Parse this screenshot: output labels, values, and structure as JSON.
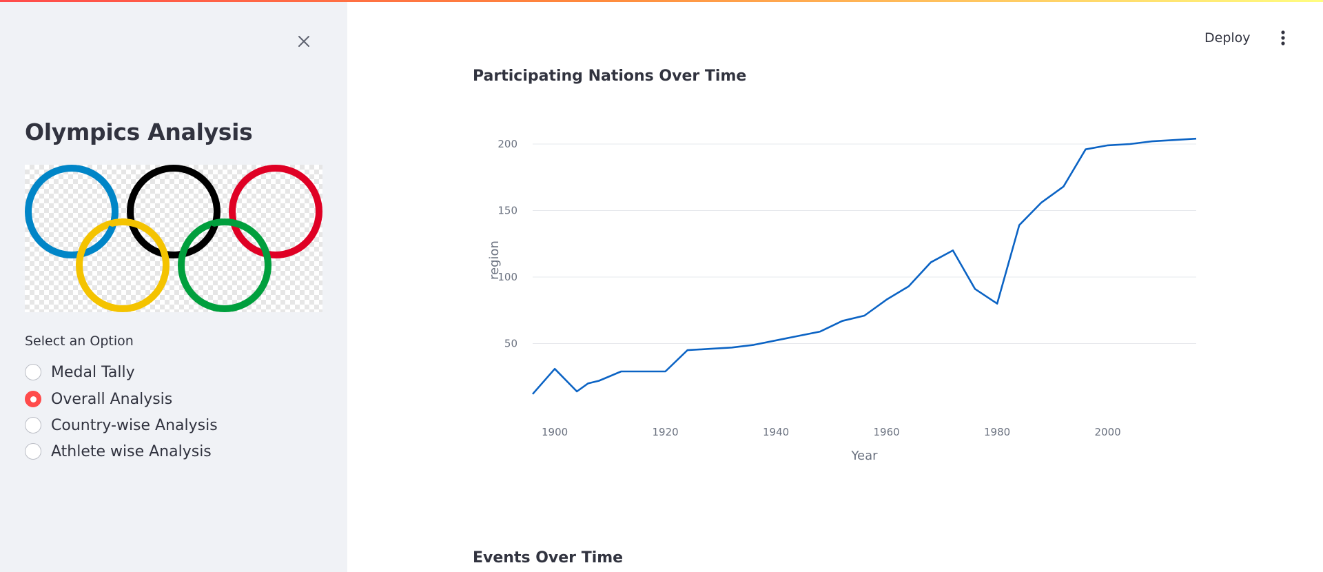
{
  "sidebar": {
    "title": "Olympics Analysis",
    "radio_label": "Select an Option",
    "options": [
      {
        "label": "Medal Tally",
        "selected": false
      },
      {
        "label": "Overall Analysis",
        "selected": true
      },
      {
        "label": "Country-wise Analysis",
        "selected": false
      },
      {
        "label": "Athlete wise Analysis",
        "selected": false
      }
    ],
    "logo_ring_colors": [
      "#0085C7",
      "#000000",
      "#DF0024",
      "#F4C300",
      "#009F3D"
    ]
  },
  "header": {
    "deploy_label": "Deploy"
  },
  "main": {
    "section1_title": "Participating Nations Over Time",
    "section2_title": "Events Over Time"
  },
  "colors": {
    "accent": "#ff4b4b",
    "line": "#0b63c4",
    "sidebar_bg": "#f0f2f6"
  },
  "chart_data": {
    "type": "line",
    "xlabel": "Year",
    "ylabel": "region",
    "xlim": [
      1896,
      2016
    ],
    "ylim": [
      0,
      215
    ],
    "x_ticks": [
      1900,
      1920,
      1940,
      1960,
      1980,
      2000
    ],
    "y_ticks": [
      50,
      100,
      150,
      200
    ],
    "grid": true,
    "series": [
      {
        "x": [
          1896,
          1900,
          1904,
          1906,
          1908,
          1912,
          1920,
          1924,
          1928,
          1932,
          1936,
          1948,
          1952,
          1956,
          1960,
          1964,
          1968,
          1972,
          1976,
          1980,
          1984,
          1988,
          1992,
          1996,
          2000,
          2004,
          2008,
          2012,
          2016
        ],
        "y": [
          12,
          31,
          14,
          20,
          22,
          29,
          29,
          45,
          46,
          47,
          49,
          59,
          67,
          71,
          83,
          93,
          111,
          120,
          91,
          80,
          139,
          156,
          168,
          196,
          199,
          200,
          202,
          203,
          204
        ]
      }
    ]
  }
}
